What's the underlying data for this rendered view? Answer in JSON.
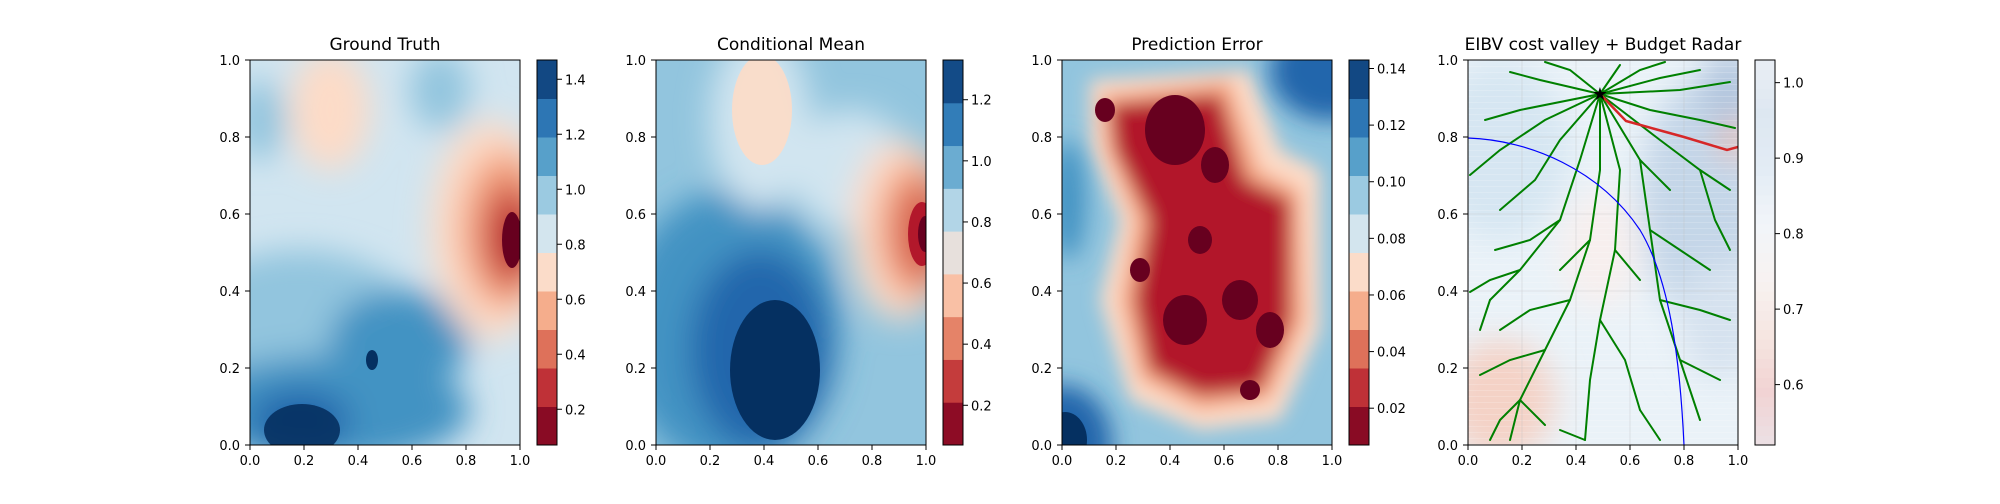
{
  "figure": {
    "panels": [
      {
        "id": "p1",
        "title": "Ground Truth",
        "colormap": "RdBu",
        "cbar_ticks": [
          "0.2",
          "0.4",
          "0.6",
          "0.8",
          "1.0",
          "1.2",
          "1.4"
        ],
        "cbar_range": [
          0.07,
          1.47
        ]
      },
      {
        "id": "p2",
        "title": "Conditional Mean",
        "colormap": "RdBu",
        "cbar_ticks": [
          "0.2",
          "0.4",
          "0.6",
          "0.8",
          "1.0",
          "1.2"
        ],
        "cbar_range": [
          0.07,
          1.33
        ]
      },
      {
        "id": "p3",
        "title": "Prediction Error",
        "colormap": "RdBu",
        "cbar_ticks": [
          "0.02",
          "0.04",
          "0.06",
          "0.08",
          "0.10",
          "0.12",
          "0.14"
        ],
        "cbar_range": [
          0.007,
          0.143
        ]
      },
      {
        "id": "p4",
        "title": "EIBV cost valley + Budget Radar",
        "colormap": "RdBu-light",
        "cbar_ticks": [
          "0.6",
          "0.7",
          "0.8",
          "0.9",
          "1.0"
        ],
        "cbar_range": [
          0.52,
          1.03
        ]
      }
    ],
    "axis_ticks": [
      "0.0",
      "0.2",
      "0.4",
      "0.6",
      "0.8",
      "1.0"
    ],
    "colors": {
      "tree_edges": "#008000",
      "selected_path": "#d62728",
      "budget_ellipse": "#0000ff",
      "start_marker": "#000000"
    }
  },
  "chart_data": [
    {
      "type": "heatmap",
      "title": "Ground Truth",
      "xlim": [
        0,
        1
      ],
      "ylim": [
        0,
        1
      ],
      "colorbar": {
        "ticks": [
          0.2,
          0.4,
          0.6,
          0.8,
          1.0,
          1.2,
          1.4
        ],
        "range": [
          0.07,
          1.47
        ]
      },
      "features": [
        {
          "kind": "low",
          "x": 0.92,
          "y": 0.55,
          "value": 0.1
        },
        {
          "kind": "low",
          "x": 0.38,
          "y": 0.88,
          "value": 0.6
        },
        {
          "kind": "high",
          "x": 0.22,
          "y": 0.07,
          "value": 1.45
        },
        {
          "kind": "high",
          "x": 0.45,
          "y": 0.23,
          "value": 1.4
        }
      ]
    },
    {
      "type": "heatmap",
      "title": "Conditional Mean",
      "xlim": [
        0,
        1
      ],
      "ylim": [
        0,
        1
      ],
      "colorbar": {
        "ticks": [
          0.2,
          0.4,
          0.6,
          0.8,
          1.0,
          1.2
        ],
        "range": [
          0.07,
          1.33
        ]
      },
      "features": [
        {
          "kind": "low",
          "x": 0.95,
          "y": 0.55,
          "value": 0.15
        },
        {
          "kind": "low",
          "x": 0.37,
          "y": 0.88,
          "value": 0.6
        },
        {
          "kind": "high",
          "x": 0.45,
          "y": 0.2,
          "value": 1.32
        }
      ]
    },
    {
      "type": "heatmap",
      "title": "Prediction Error",
      "xlim": [
        0,
        1
      ],
      "ylim": [
        0,
        1
      ],
      "colorbar": {
        "ticks": [
          0.02,
          0.04,
          0.06,
          0.08,
          0.1,
          0.12,
          0.14
        ],
        "range": [
          0.007,
          0.143
        ]
      },
      "features": [
        {
          "kind": "low",
          "x": 0.35,
          "y": 0.85,
          "value": 0.01
        },
        {
          "kind": "low",
          "x": 0.55,
          "y": 0.45,
          "value": 0.01
        },
        {
          "kind": "high",
          "x": 0.95,
          "y": 0.95,
          "value": 0.14
        },
        {
          "kind": "high",
          "x": 0.02,
          "y": 0.05,
          "value": 0.14
        }
      ]
    },
    {
      "type": "heatmap",
      "title": "EIBV cost valley + Budget Radar",
      "xlim": [
        0,
        1
      ],
      "ylim": [
        0,
        1
      ],
      "colorbar": {
        "ticks": [
          0.6,
          0.7,
          0.8,
          0.9,
          1.0
        ],
        "range": [
          0.52,
          1.03
        ]
      },
      "start_point": {
        "x": 0.49,
        "y": 0.9
      },
      "selected_path": [
        {
          "x": 0.49,
          "y": 0.9
        },
        {
          "x": 0.59,
          "y": 0.82
        },
        {
          "x": 0.8,
          "y": 0.78
        },
        {
          "x": 0.96,
          "y": 0.74
        },
        {
          "x": 1.0,
          "y": 0.75
        }
      ],
      "budget_boundary": {
        "x_center": 0.0,
        "y_center": 0.0,
        "a": 0.8,
        "b": 0.79
      }
    }
  ]
}
